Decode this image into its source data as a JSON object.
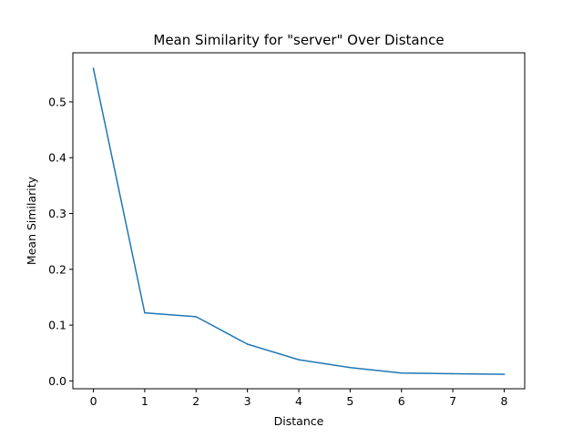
{
  "chart_data": {
    "type": "line",
    "title": "Mean Similarity for \"server\" Over Distance",
    "xlabel": "Distance",
    "ylabel": "Mean Similarity",
    "xlim": [
      -0.4,
      8.4
    ],
    "ylim": [
      -0.014,
      0.588
    ],
    "xticks": [
      "0",
      "1",
      "2",
      "3",
      "4",
      "5",
      "6",
      "7",
      "8"
    ],
    "yticks": [
      "0.0",
      "0.1",
      "0.2",
      "0.3",
      "0.4",
      "0.5"
    ],
    "grid": false,
    "series": [
      {
        "color": "#1f77b4",
        "x": [
          0,
          1,
          2,
          3,
          4,
          5,
          6,
          7,
          8
        ],
        "y": [
          0.56,
          0.122,
          0.115,
          0.066,
          0.038,
          0.024,
          0.014,
          0.013,
          0.012
        ]
      }
    ]
  }
}
